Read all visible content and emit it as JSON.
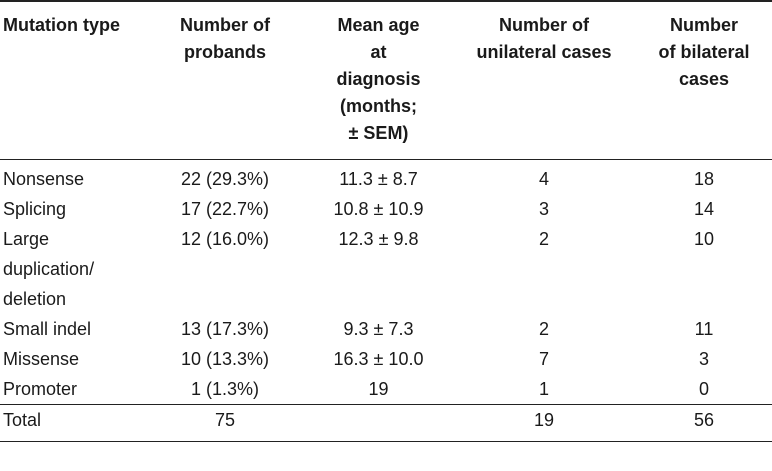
{
  "table": {
    "headers": [
      [
        "Mutation type"
      ],
      [
        "Number of",
        "probands"
      ],
      [
        "Mean age",
        "at",
        "diagnosis",
        "(months;",
        "± SEM)"
      ],
      [
        "Number of",
        "unilateral cases"
      ],
      [
        "Number",
        "of bilateral",
        "cases"
      ]
    ],
    "rows": [
      {
        "type": [
          "Nonsense"
        ],
        "probands": "22 (29.3%)",
        "mean_age": "11.3 ± 8.7",
        "unilateral": "4",
        "bilateral": "18"
      },
      {
        "type": [
          "Splicing"
        ],
        "probands": "17 (22.7%)",
        "mean_age": "10.8 ± 10.9",
        "unilateral": "3",
        "bilateral": "14"
      },
      {
        "type": [
          "Large",
          "duplication/",
          "deletion"
        ],
        "probands": "12 (16.0%)",
        "mean_age": "12.3 ± 9.8",
        "unilateral": "2",
        "bilateral": "10"
      },
      {
        "type": [
          "Small indel"
        ],
        "probands": "13 (17.3%)",
        "mean_age": "9.3 ± 7.3",
        "unilateral": "2",
        "bilateral": "11"
      },
      {
        "type": [
          "Missense"
        ],
        "probands": "10 (13.3%)",
        "mean_age": "16.3 ± 10.0",
        "unilateral": "7",
        "bilateral": "3"
      },
      {
        "type": [
          "Promoter"
        ],
        "probands": "1 (1.3%)",
        "mean_age": "19",
        "unilateral": "1",
        "bilateral": "0"
      }
    ],
    "total": {
      "type": "Total",
      "probands": "75",
      "mean_age": "",
      "unilateral": "19",
      "bilateral": "56"
    }
  }
}
